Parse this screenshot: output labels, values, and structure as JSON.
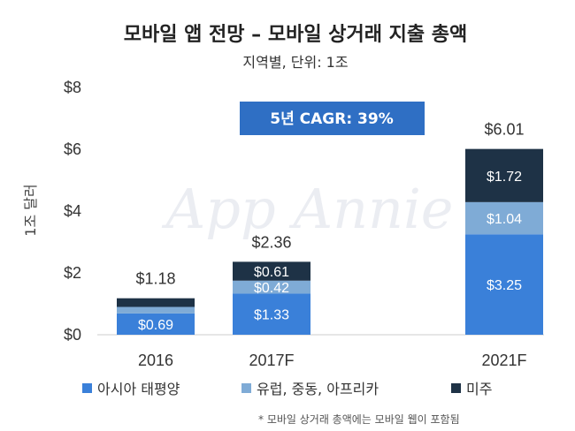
{
  "header": {
    "title": "모바일 앱 전망 – 모바일 상거래 지출 총액",
    "subtitle": "지역별, 단위: 1조"
  },
  "watermark": "App Annie",
  "annotation": {
    "cagr": "5년 CAGR: 39%"
  },
  "footnote": "* 모바일 상거래 총액에는 모바일 웹이 포함됨",
  "colors": {
    "asia_pacific": "#3a80d9",
    "europe_me_africa": "#7fabd6",
    "americas": "#1e3246",
    "cagr_box": "#2f6fc4",
    "axis": "#cccccc"
  },
  "chart_data": {
    "type": "bar",
    "stacked": true,
    "categories": [
      "2016",
      "2017F",
      "2021F"
    ],
    "ylabel": "1조 달러",
    "ylim": [
      0,
      8
    ],
    "yticks": [
      "$0",
      "$2",
      "$4",
      "$6",
      "$8"
    ],
    "totals": [
      "$1.18",
      "$2.36",
      "$6.01"
    ],
    "series": [
      {
        "name": "아시아 태평양",
        "values": [
          0.69,
          1.33,
          3.25
        ],
        "labels": [
          "$0.69",
          "$1.33",
          "$3.25"
        ]
      },
      {
        "name": "유럽, 중동, 아프리카",
        "values": [
          0.21,
          0.42,
          1.04
        ],
        "labels": [
          "",
          "$0.42",
          "$1.04"
        ]
      },
      {
        "name": "미주",
        "values": [
          0.28,
          0.61,
          1.72
        ],
        "labels": [
          "",
          "$0.61",
          "$1.72"
        ]
      }
    ],
    "grid": false,
    "legend_position": "bottom"
  }
}
